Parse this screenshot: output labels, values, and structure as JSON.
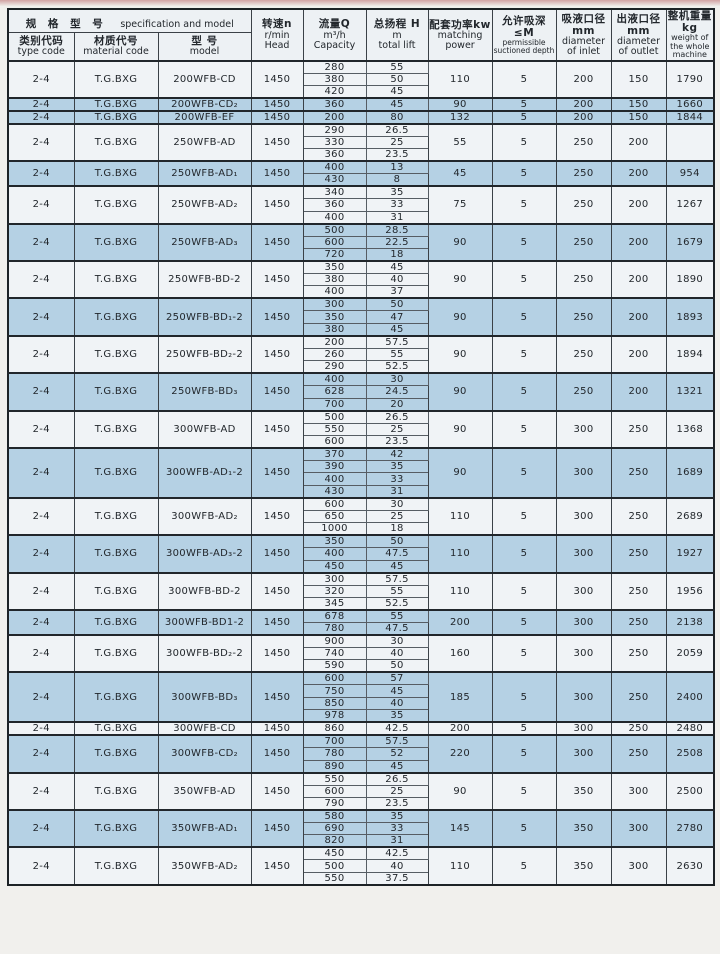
{
  "page": {
    "kind": "scanned pump specification table"
  },
  "colors": {
    "highlight_row": "#b5d1e4",
    "plain_row": "#f0f3f6",
    "header_bg": "#edf1f4",
    "border": "#3b4147",
    "outer_border": "#1d2226",
    "top_strip": "#d2a2a2"
  },
  "table": {
    "header": {
      "spec_group": {
        "cn": "规 格 型 号",
        "en": "specification and model"
      },
      "type_code": {
        "cn": "类别代码",
        "en": "type code"
      },
      "material_code": {
        "cn": "材质代号",
        "en": "material code"
      },
      "model": {
        "cn": "型  号",
        "en": "model"
      },
      "speed": {
        "cn": "转速n",
        "unit": "r/min",
        "en": "Head"
      },
      "capacity": {
        "cn": "流量Q",
        "unit": "m³/h",
        "en": "Capacity"
      },
      "lift": {
        "cn": "总扬程 H",
        "unit": "m",
        "en": "total lift"
      },
      "power": {
        "cn": "配套功率kw",
        "en": "matching power"
      },
      "depth": {
        "cn": "允许吸深≤M",
        "en": "permissible suctioned depth"
      },
      "inlet": {
        "cn": "吸液口径mm",
        "en": "diameter of inlet"
      },
      "outlet": {
        "cn": "出液口径mm",
        "en": "diameter of outlet"
      },
      "weight": {
        "cn": "整机重量kg",
        "en": "weight of the whole machine"
      }
    },
    "rows": [
      {
        "type_code": "2-4",
        "material_code": "T.G.BXG",
        "model": "200WFB-CD",
        "speed": "1450",
        "points": [
          [
            "280",
            "55"
          ],
          [
            "380",
            "50"
          ],
          [
            "420",
            "45"
          ]
        ],
        "power": "110",
        "depth": "5",
        "inlet": "200",
        "outlet": "150",
        "weight": "1790",
        "highlight": false
      },
      {
        "type_code": "2-4",
        "material_code": "T.G.BXG",
        "model": "200WFB-CD₂",
        "speed": "1450",
        "points": [
          [
            "360",
            "45"
          ]
        ],
        "power": "90",
        "depth": "5",
        "inlet": "200",
        "outlet": "150",
        "weight": "1660",
        "highlight": true
      },
      {
        "type_code": "2-4",
        "material_code": "T.G.BXG",
        "model": "200WFB-EF",
        "speed": "1450",
        "points": [
          [
            "200",
            "80"
          ]
        ],
        "power": "132",
        "depth": "5",
        "inlet": "200",
        "outlet": "150",
        "weight": "1844",
        "highlight": true
      },
      {
        "type_code": "2-4",
        "material_code": "T.G.BXG",
        "model": "250WFB-AD",
        "speed": "1450",
        "points": [
          [
            "290",
            "26.5"
          ],
          [
            "330",
            "25"
          ],
          [
            "360",
            "23.5"
          ]
        ],
        "power": "55",
        "depth": "5",
        "inlet": "250",
        "outlet": "200",
        "weight": "",
        "highlight": false
      },
      {
        "type_code": "2-4",
        "material_code": "T.G.BXG",
        "model": "250WFB-AD₁",
        "speed": "1450",
        "points": [
          [
            "400",
            "13"
          ],
          [
            "430",
            "8"
          ]
        ],
        "power": "45",
        "depth": "5",
        "inlet": "250",
        "outlet": "200",
        "weight": "954",
        "highlight": true
      },
      {
        "type_code": "2-4",
        "material_code": "T.G.BXG",
        "model": "250WFB-AD₂",
        "speed": "1450",
        "points": [
          [
            "340",
            "35"
          ],
          [
            "360",
            "33"
          ],
          [
            "400",
            "31"
          ]
        ],
        "power": "75",
        "depth": "5",
        "inlet": "250",
        "outlet": "200",
        "weight": "1267",
        "highlight": false
      },
      {
        "type_code": "2-4",
        "material_code": "T.G.BXG",
        "model": "250WFB-AD₃",
        "speed": "1450",
        "points": [
          [
            "500",
            "28.5"
          ],
          [
            "600",
            "22.5"
          ],
          [
            "720",
            "18"
          ]
        ],
        "power": "90",
        "depth": "5",
        "inlet": "250",
        "outlet": "200",
        "weight": "1679",
        "highlight": true
      },
      {
        "type_code": "2-4",
        "material_code": "T.G.BXG",
        "model": "250WFB-BD-2",
        "speed": "1450",
        "points": [
          [
            "350",
            "45"
          ],
          [
            "380",
            "40"
          ],
          [
            "400",
            "37"
          ]
        ],
        "power": "90",
        "depth": "5",
        "inlet": "250",
        "outlet": "200",
        "weight": "1890",
        "highlight": false
      },
      {
        "type_code": "2-4",
        "material_code": "T.G.BXG",
        "model": "250WFB-BD₁-2",
        "speed": "1450",
        "points": [
          [
            "300",
            "50"
          ],
          [
            "350",
            "47"
          ],
          [
            "380",
            "45"
          ]
        ],
        "power": "90",
        "depth": "5",
        "inlet": "250",
        "outlet": "200",
        "weight": "1893",
        "highlight": true
      },
      {
        "type_code": "2-4",
        "material_code": "T.G.BXG",
        "model": "250WFB-BD₂-2",
        "speed": "1450",
        "points": [
          [
            "200",
            "57.5"
          ],
          [
            "260",
            "55"
          ],
          [
            "290",
            "52.5"
          ]
        ],
        "power": "90",
        "depth": "5",
        "inlet": "250",
        "outlet": "200",
        "weight": "1894",
        "highlight": false
      },
      {
        "type_code": "2-4",
        "material_code": "T.G.BXG",
        "model": "250WFB-BD₃",
        "speed": "1450",
        "points": [
          [
            "400",
            "30"
          ],
          [
            "628",
            "24.5"
          ],
          [
            "700",
            "20"
          ]
        ],
        "power": "90",
        "depth": "5",
        "inlet": "250",
        "outlet": "200",
        "weight": "1321",
        "highlight": true
      },
      {
        "type_code": "2-4",
        "material_code": "T.G.BXG",
        "model": "300WFB-AD",
        "speed": "1450",
        "points": [
          [
            "500",
            "26.5"
          ],
          [
            "550",
            "25"
          ],
          [
            "600",
            "23.5"
          ]
        ],
        "power": "90",
        "depth": "5",
        "inlet": "300",
        "outlet": "250",
        "weight": "1368",
        "highlight": false
      },
      {
        "type_code": "2-4",
        "material_code": "T.G.BXG",
        "model": "300WFB-AD₁-2",
        "speed": "1450",
        "points": [
          [
            "370",
            "42"
          ],
          [
            "390",
            "35"
          ],
          [
            "400",
            "33"
          ],
          [
            "430",
            "31"
          ]
        ],
        "power": "90",
        "depth": "5",
        "inlet": "300",
        "outlet": "250",
        "weight": "1689",
        "highlight": true
      },
      {
        "type_code": "2-4",
        "material_code": "T.G.BXG",
        "model": "300WFB-AD₂",
        "speed": "1450",
        "points": [
          [
            "600",
            "30"
          ],
          [
            "650",
            "25"
          ],
          [
            "1000",
            "18"
          ]
        ],
        "power": "110",
        "depth": "5",
        "inlet": "300",
        "outlet": "250",
        "weight": "2689",
        "highlight": false
      },
      {
        "type_code": "2-4",
        "material_code": "T.G.BXG",
        "model": "300WFB-AD₃-2",
        "speed": "1450",
        "points": [
          [
            "350",
            "50"
          ],
          [
            "400",
            "47.5"
          ],
          [
            "450",
            "45"
          ]
        ],
        "power": "110",
        "depth": "5",
        "inlet": "300",
        "outlet": "250",
        "weight": "1927",
        "highlight": true
      },
      {
        "type_code": "2-4",
        "material_code": "T.G.BXG",
        "model": "300WFB-BD-2",
        "speed": "1450",
        "points": [
          [
            "300",
            "57.5"
          ],
          [
            "320",
            "55"
          ],
          [
            "345",
            "52.5"
          ]
        ],
        "power": "110",
        "depth": "5",
        "inlet": "300",
        "outlet": "250",
        "weight": "1956",
        "highlight": false
      },
      {
        "type_code": "2-4",
        "material_code": "T.G.BXG",
        "model": "300WFB-BD1-2",
        "speed": "1450",
        "points": [
          [
            "678",
            "55"
          ],
          [
            "780",
            "47.5"
          ]
        ],
        "power": "200",
        "depth": "5",
        "inlet": "300",
        "outlet": "250",
        "weight": "2138",
        "highlight": true
      },
      {
        "type_code": "2-4",
        "material_code": "T.G.BXG",
        "model": "300WFB-BD₂-2",
        "speed": "1450",
        "points": [
          [
            "900",
            "30"
          ],
          [
            "740",
            "40"
          ],
          [
            "590",
            "50"
          ]
        ],
        "power": "160",
        "depth": "5",
        "inlet": "300",
        "outlet": "250",
        "weight": "2059",
        "highlight": false
      },
      {
        "type_code": "2-4",
        "material_code": "T.G.BXG",
        "model": "300WFB-BD₃",
        "speed": "1450",
        "points": [
          [
            "600",
            "57"
          ],
          [
            "750",
            "45"
          ],
          [
            "850",
            "40"
          ],
          [
            "978",
            "35"
          ]
        ],
        "power": "185",
        "depth": "5",
        "inlet": "300",
        "outlet": "250",
        "weight": "2400",
        "highlight": true
      },
      {
        "type_code": "2-4",
        "material_code": "T.G.BXG",
        "model": "300WFB-CD",
        "speed": "1450",
        "points": [
          [
            "860",
            "42.5"
          ]
        ],
        "power": "200",
        "depth": "5",
        "inlet": "300",
        "outlet": "250",
        "weight": "2480",
        "highlight": false
      },
      {
        "type_code": "2-4",
        "material_code": "T.G.BXG",
        "model": "300WFB-CD₂",
        "speed": "1450",
        "points": [
          [
            "700",
            "57.5"
          ],
          [
            "780",
            "52"
          ],
          [
            "890",
            "45"
          ]
        ],
        "power": "220",
        "depth": "5",
        "inlet": "300",
        "outlet": "250",
        "weight": "2508",
        "highlight": true
      },
      {
        "type_code": "2-4",
        "material_code": "T.G.BXG",
        "model": "350WFB-AD",
        "speed": "1450",
        "points": [
          [
            "550",
            "26.5"
          ],
          [
            "600",
            "25"
          ],
          [
            "790",
            "23.5"
          ]
        ],
        "power": "90",
        "depth": "5",
        "inlet": "350",
        "outlet": "300",
        "weight": "2500",
        "highlight": false
      },
      {
        "type_code": "2-4",
        "material_code": "T.G.BXG",
        "model": "350WFB-AD₁",
        "speed": "1450",
        "points": [
          [
            "580",
            "35"
          ],
          [
            "690",
            "33"
          ],
          [
            "820",
            "31"
          ]
        ],
        "power": "145",
        "depth": "5",
        "inlet": "350",
        "outlet": "300",
        "weight": "2780",
        "highlight": true
      },
      {
        "type_code": "2-4",
        "material_code": "T.G.BXG",
        "model": "350WFB-AD₂",
        "speed": "1450",
        "points": [
          [
            "450",
            "42.5"
          ],
          [
            "500",
            "40"
          ],
          [
            "550",
            "37.5"
          ]
        ],
        "power": "110",
        "depth": "5",
        "inlet": "350",
        "outlet": "300",
        "weight": "2630",
        "highlight": false
      }
    ]
  }
}
